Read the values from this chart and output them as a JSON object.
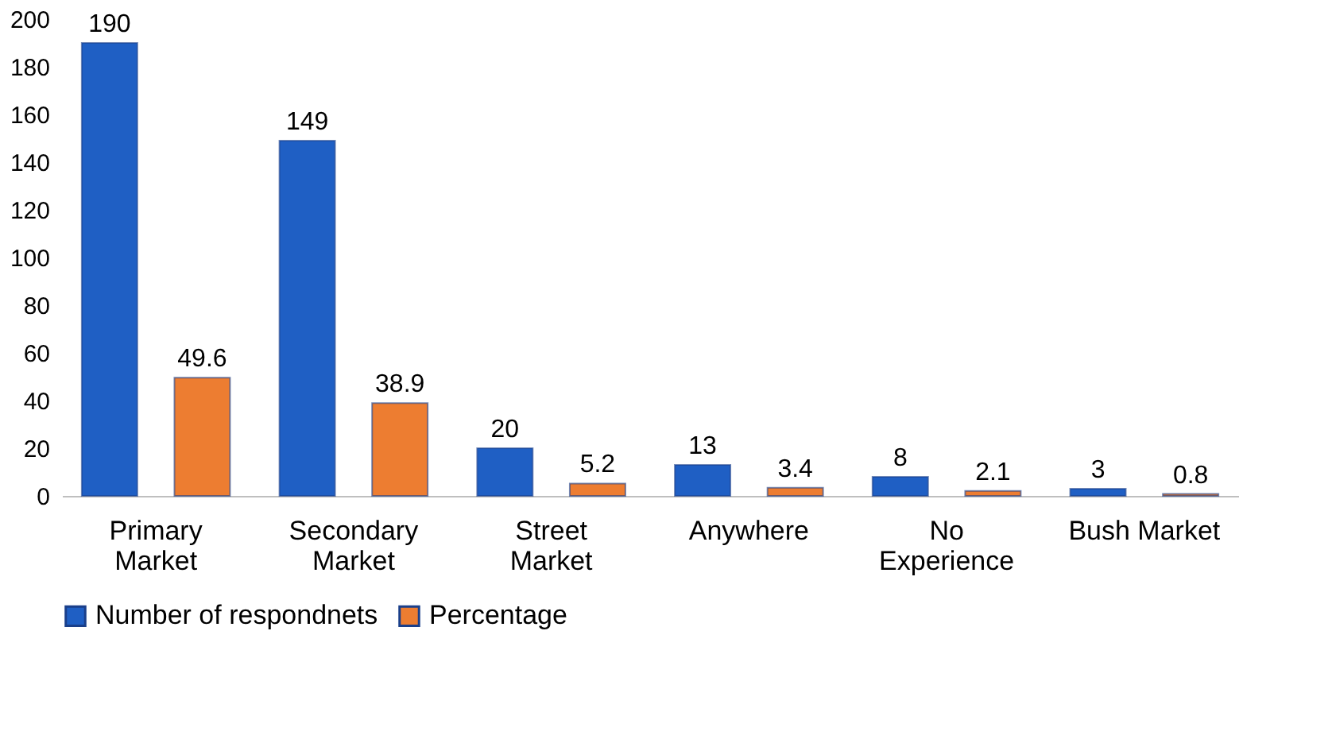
{
  "chart_data": {
    "type": "bar",
    "categories": [
      "Primary\nMarket",
      "Secondary\nMarket",
      "Street\nMarket",
      "Anywhere",
      "No\nExperience",
      "Bush Market"
    ],
    "series": [
      {
        "name": "Number of respondnets",
        "color": "#1f5fc4",
        "values": [
          190,
          149,
          20,
          13,
          8,
          3
        ]
      },
      {
        "name": "Percentage",
        "color": "#ed7d31",
        "values": [
          49.6,
          38.9,
          5.2,
          3.4,
          2.1,
          0.8
        ]
      }
    ],
    "ylim": [
      0,
      200
    ],
    "yticks": [
      0,
      20,
      40,
      60,
      80,
      100,
      120,
      140,
      160,
      180,
      200
    ],
    "grid": false,
    "legend": "bottom",
    "data_labels": true
  }
}
